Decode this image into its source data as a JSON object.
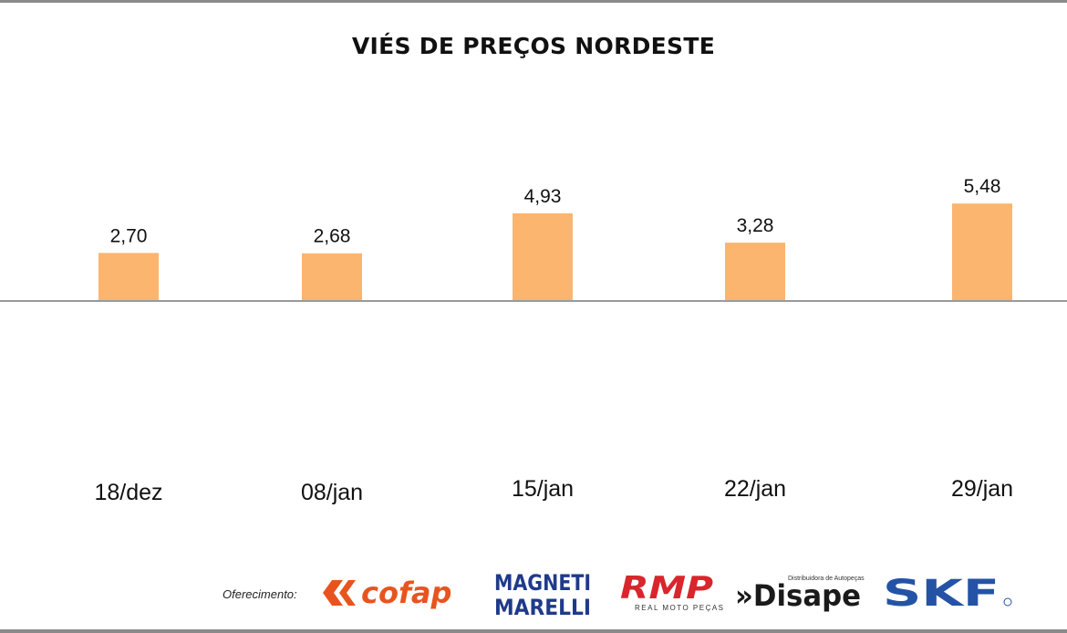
{
  "chart_data": {
    "type": "bar",
    "title": "VIÉS DE PREÇOS NORDESTE",
    "categories": [
      "18/dez",
      "08/jan",
      "15/jan",
      "22/jan",
      "29/jan"
    ],
    "values": [
      2.7,
      2.68,
      4.93,
      3.28,
      5.48
    ],
    "value_labels": [
      "2,70",
      "2,68",
      "4,93",
      "3,28",
      "5,48"
    ],
    "xlabel": "",
    "ylabel": "",
    "ylim": [
      0,
      6
    ],
    "grid": false,
    "legend": "none",
    "bar_color": "#FBB56F"
  },
  "sponsors": {
    "caption": "Oferecimento:",
    "logos": [
      {
        "icon": "cofap-logo",
        "text": "cofap",
        "color": "#E8541E"
      },
      {
        "icon": "magneti-marelli-logo",
        "text": "MAGNETI MARELLI",
        "color": "#1F3A8A"
      },
      {
        "icon": "rmp-logo",
        "text": "RMP",
        "subtext": "REAL MOTO PEÇAS",
        "color": "#D8262C"
      },
      {
        "icon": "disape-logo",
        "text": "»Disape",
        "subtext": "Distribuidora de Autopeças",
        "color": "#1A1A1A"
      },
      {
        "icon": "skf-logo",
        "text": "SKF",
        "color": "#2453A6"
      }
    ]
  }
}
